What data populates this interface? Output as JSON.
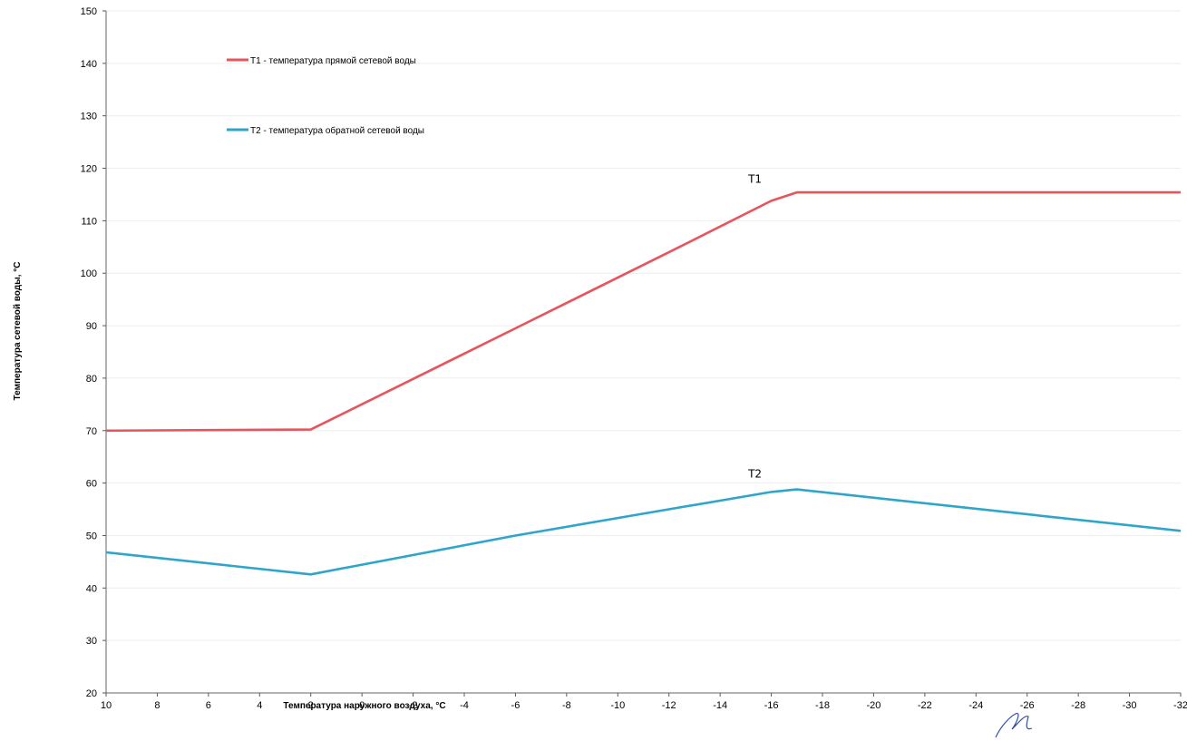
{
  "chart_data": {
    "type": "line",
    "title": "",
    "xlabel": "Температура наружного воздуха, °С",
    "ylabel": "Температура сетевой воды, °С",
    "xlim": [
      10,
      -32
    ],
    "ylim": [
      20,
      150
    ],
    "x_ticks": [
      10,
      8,
      6,
      4,
      2,
      0,
      -2,
      -4,
      -6,
      -8,
      -10,
      -12,
      -14,
      -16,
      -18,
      -20,
      -22,
      -24,
      -26,
      -28,
      -30,
      -32
    ],
    "y_ticks": [
      20,
      30,
      40,
      50,
      60,
      70,
      80,
      90,
      100,
      110,
      120,
      130,
      140,
      150
    ],
    "grid": true,
    "legend_position": "top-left",
    "series": [
      {
        "name": "T1 - температура прямой сетевой воды",
        "label": "T1",
        "color": "#e8545c",
        "x": [
          10,
          2,
          -6,
          -12,
          -16,
          -17,
          -32
        ],
        "y": [
          70,
          70.2,
          89.5,
          104,
          113.8,
          115.4,
          115.4
        ]
      },
      {
        "name": "T2 - температура обратной сетевой воды",
        "label": "T2",
        "color": "#2ea6c9",
        "x": [
          10,
          2,
          -6,
          -12,
          -16,
          -17,
          -32
        ],
        "y": [
          46.8,
          42.6,
          50,
          55,
          58.3,
          58.8,
          50.9
        ]
      }
    ]
  }
}
